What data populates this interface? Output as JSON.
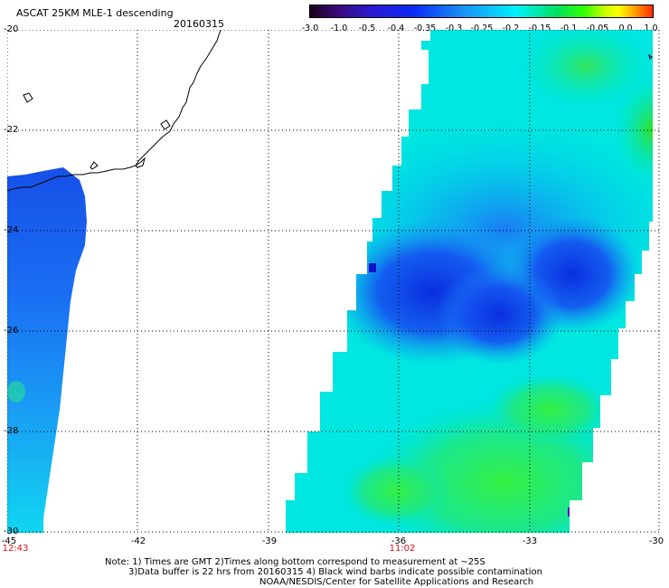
{
  "header": {
    "title": "ASCAT 25KM MLE-1 descending",
    "date": "20160315"
  },
  "colorbar": {
    "labels": [
      "-3.0",
      "-1.0",
      "-0.5",
      "-0.4",
      "-0.35",
      "-0.3",
      "-0.25",
      "-0.2",
      "-0.15",
      "-0.1",
      "-0.05",
      "0.0",
      "1.0"
    ],
    "colors": [
      "#1a001a",
      "#3a0a7a",
      "#2a1ad0",
      "#0a2af5",
      "#1a8cf5",
      "#00f0ff",
      "#00e060",
      "#30ff00",
      "#c8ff00",
      "#ffff00",
      "#ff9a00",
      "#ff2a00"
    ]
  },
  "axes": {
    "lat_labels": [
      "-20",
      "-22",
      "-24",
      "-26",
      "-28",
      "-30"
    ],
    "lon_labels": [
      "-45",
      "-42",
      "-39",
      "-36",
      "-33",
      "-30"
    ],
    "lat_range": [
      -30,
      -20
    ],
    "lon_range": [
      -45,
      -30
    ]
  },
  "pass_times": [
    "12:43",
    "11:02"
  ],
  "notes": [
    "Note: 1) Times are GMT 2)Times along bottom correspond to measurement at ~25S",
    "3)Data buffer is 22 hrs from 20160315 4) Black wind barbs indicate possible contamination",
    "NOAA/NESDIS/Center for Satellite Applications and Research"
  ]
}
